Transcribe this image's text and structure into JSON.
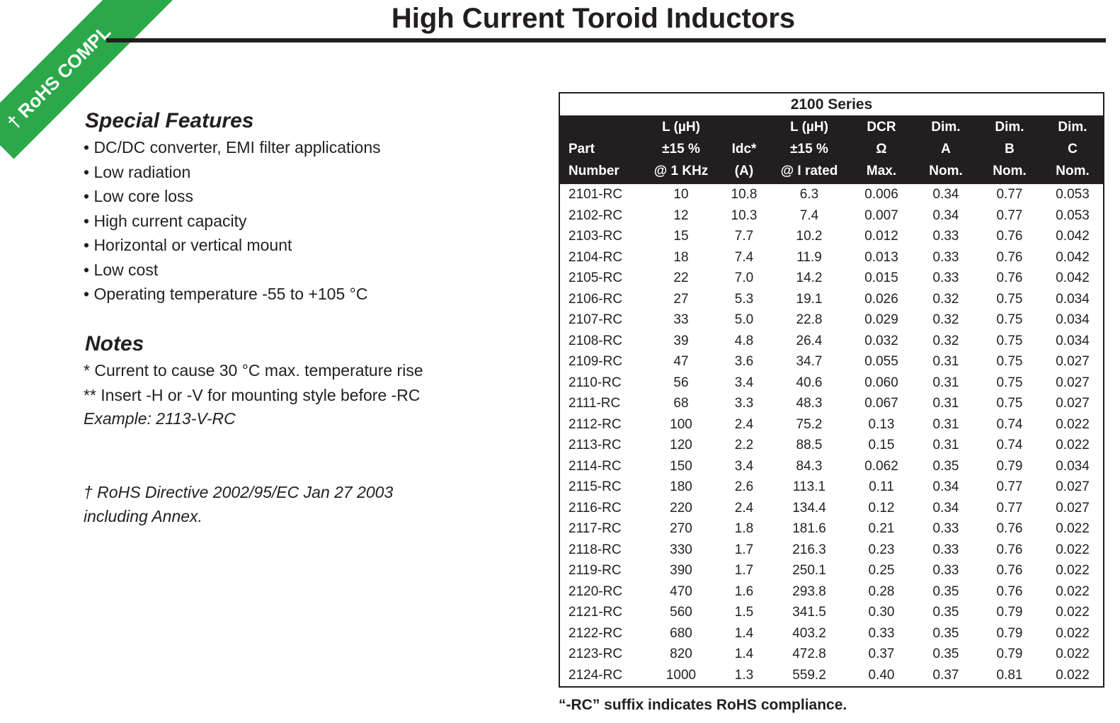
{
  "banner": "† RoHS COMPL",
  "header": {
    "title": "High Current Toroid Inductors"
  },
  "features": {
    "heading": "Special Features",
    "items": [
      "• DC/DC converter, EMI filter applications",
      "• Low radiation",
      "• Low core loss",
      "• High current capacity",
      "• Horizontal or vertical mount",
      "• Low cost",
      "• Operating temperature -55 to +105 °C"
    ]
  },
  "notes": {
    "heading": "Notes",
    "lines": [
      "* Current to cause 30 °C max. temperature rise",
      "** Insert -H or -V for mounting style before -RC"
    ],
    "example": "Example: 2113-V-RC",
    "rohs": [
      "† RoHS Directive 2002/95/EC Jan 27 2003",
      "including Annex."
    ]
  },
  "table": {
    "title": "2100 Series",
    "columns": [
      [
        "Part",
        "Number"
      ],
      [
        "L (µH)",
        "±15 %",
        "@ 1 KHz"
      ],
      [
        "Idc*",
        "(A)"
      ],
      [
        "L (µH)",
        "±15 %",
        "@ I rated"
      ],
      [
        "DCR",
        "Ω",
        "Max."
      ],
      [
        "Dim.",
        "A",
        "Nom."
      ],
      [
        "Dim.",
        "B",
        "Nom."
      ],
      [
        "Dim.",
        "C",
        "Nom."
      ]
    ],
    "rows": [
      [
        "2101-RC",
        "10",
        "10.8",
        "6.3",
        "0.006",
        "0.34",
        "0.77",
        "0.053"
      ],
      [
        "2102-RC",
        "12",
        "10.3",
        "7.4",
        "0.007",
        "0.34",
        "0.77",
        "0.053"
      ],
      [
        "2103-RC",
        "15",
        "7.7",
        "10.2",
        "0.012",
        "0.33",
        "0.76",
        "0.042"
      ],
      [
        "2104-RC",
        "18",
        "7.4",
        "11.9",
        "0.013",
        "0.33",
        "0.76",
        "0.042"
      ],
      [
        "2105-RC",
        "22",
        "7.0",
        "14.2",
        "0.015",
        "0.33",
        "0.76",
        "0.042"
      ],
      [
        "2106-RC",
        "27",
        "5.3",
        "19.1",
        "0.026",
        "0.32",
        "0.75",
        "0.034"
      ],
      [
        "2107-RC",
        "33",
        "5.0",
        "22.8",
        "0.029",
        "0.32",
        "0.75",
        "0.034"
      ],
      [
        "2108-RC",
        "39",
        "4.8",
        "26.4",
        "0.032",
        "0.32",
        "0.75",
        "0.034"
      ],
      [
        "2109-RC",
        "47",
        "3.6",
        "34.7",
        "0.055",
        "0.31",
        "0.75",
        "0.027"
      ],
      [
        "2110-RC",
        "56",
        "3.4",
        "40.6",
        "0.060",
        "0.31",
        "0.75",
        "0.027"
      ],
      [
        "2111-RC",
        "68",
        "3.3",
        "48.3",
        "0.067",
        "0.31",
        "0.75",
        "0.027"
      ],
      [
        "2112-RC",
        "100",
        "2.4",
        "75.2",
        "0.13",
        "0.31",
        "0.74",
        "0.022"
      ],
      [
        "2113-RC",
        "120",
        "2.2",
        "88.5",
        "0.15",
        "0.31",
        "0.74",
        "0.022"
      ],
      [
        "2114-RC",
        "150",
        "3.4",
        "84.3",
        "0.062",
        "0.35",
        "0.79",
        "0.034"
      ],
      [
        "2115-RC",
        "180",
        "2.6",
        "113.1",
        "0.11",
        "0.34",
        "0.77",
        "0.027"
      ],
      [
        "2116-RC",
        "220",
        "2.4",
        "134.4",
        "0.12",
        "0.34",
        "0.77",
        "0.027"
      ],
      [
        "2117-RC",
        "270",
        "1.8",
        "181.6",
        "0.21",
        "0.33",
        "0.76",
        "0.022"
      ],
      [
        "2118-RC",
        "330",
        "1.7",
        "216.3",
        "0.23",
        "0.33",
        "0.76",
        "0.022"
      ],
      [
        "2119-RC",
        "390",
        "1.7",
        "250.1",
        "0.25",
        "0.33",
        "0.76",
        "0.022"
      ],
      [
        "2120-RC",
        "470",
        "1.6",
        "293.8",
        "0.28",
        "0.35",
        "0.76",
        "0.022"
      ],
      [
        "2121-RC",
        "560",
        "1.5",
        "341.5",
        "0.30",
        "0.35",
        "0.79",
        "0.022"
      ],
      [
        "2122-RC",
        "680",
        "1.4",
        "403.2",
        "0.33",
        "0.35",
        "0.79",
        "0.022"
      ],
      [
        "2123-RC",
        "820",
        "1.4",
        "472.8",
        "0.37",
        "0.35",
        "0.79",
        "0.022"
      ],
      [
        "2124-RC",
        "1000",
        "1.3",
        "559.2",
        "0.40",
        "0.37",
        "0.81",
        "0.022"
      ]
    ]
  },
  "footer": "“-RC” suffix indicates RoHS compliance."
}
